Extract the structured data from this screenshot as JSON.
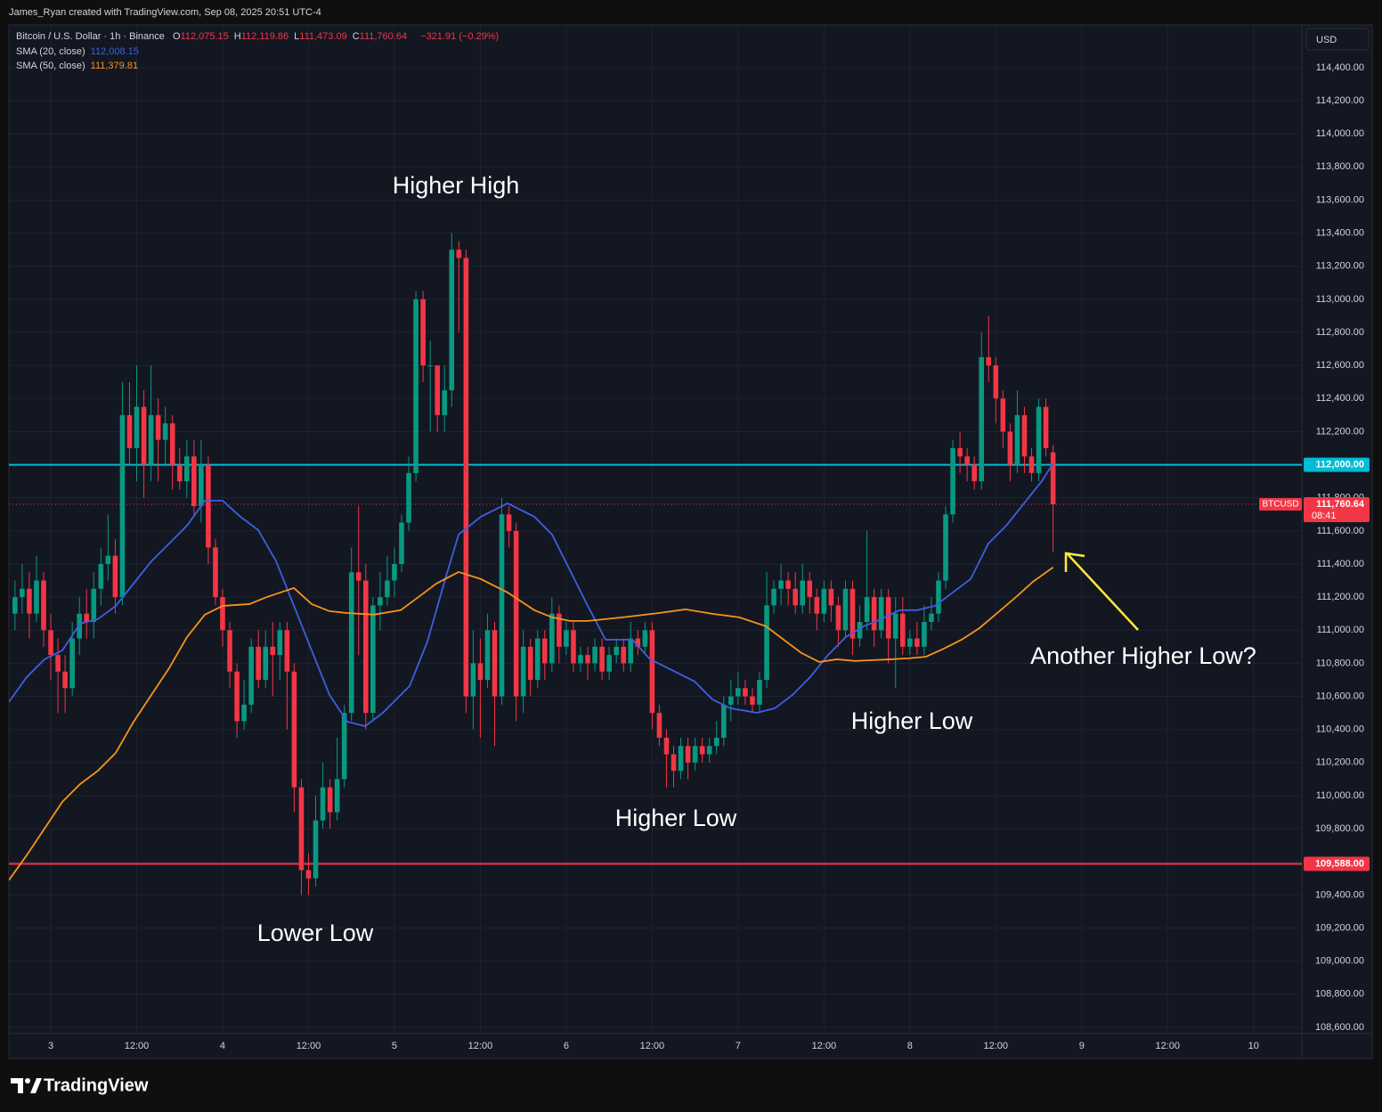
{
  "chart_data": {
    "type": "candlestick",
    "header": "James_Ryan created with TradingView.com, Sep 08, 2025 20:51 UTC-4",
    "symbol": "Bitcoin / U.S. Dollar · 1h · Binance",
    "ohlc": [
      {
        "key": "O",
        "value": "112,075.15"
      },
      {
        "key": "H",
        "value": "112,119.86"
      },
      {
        "key": "L",
        "value": "111,473.09"
      },
      {
        "key": "C",
        "value": "111,760.64"
      }
    ],
    "change": "−321.91 (−0.29%)",
    "currency": "USD",
    "footer": "TradingView",
    "up_color": "#089981",
    "down_color": "#f23645",
    "xlim": [
      -5.85,
      174.75
    ],
    "ylim": [
      108562,
      114658
    ],
    "xticks": [
      {
        "value": 0,
        "label": "3"
      },
      {
        "value": 12,
        "label": "12:00"
      },
      {
        "value": 24,
        "label": "4"
      },
      {
        "value": 36,
        "label": "12:00"
      },
      {
        "value": 48,
        "label": "5"
      },
      {
        "value": 60,
        "label": "12:00"
      },
      {
        "value": 72,
        "label": "6"
      },
      {
        "value": 84,
        "label": "12:00"
      },
      {
        "value": 96,
        "label": "7"
      },
      {
        "value": 108,
        "label": "12:00"
      },
      {
        "value": 120,
        "label": "8"
      },
      {
        "value": 132,
        "label": "12:00"
      },
      {
        "value": 144,
        "label": "9"
      },
      {
        "value": 156,
        "label": "12:00"
      },
      {
        "value": 168,
        "label": "10"
      }
    ],
    "yticks": [
      {
        "value": 108600,
        "label": "108,600.00"
      },
      {
        "value": 108800,
        "label": "108,800.00"
      },
      {
        "value": 109000,
        "label": "109,000.00"
      },
      {
        "value": 109200,
        "label": "109,200.00"
      },
      {
        "value": 109400,
        "label": "109,400.00"
      },
      {
        "value": 109600,
        "label": "109,600.00"
      },
      {
        "value": 109800,
        "label": "109,800.00"
      },
      {
        "value": 110000,
        "label": "110,000.00"
      },
      {
        "value": 110200,
        "label": "110,200.00"
      },
      {
        "value": 110400,
        "label": "110,400.00"
      },
      {
        "value": 110600,
        "label": "110,600.00"
      },
      {
        "value": 110800,
        "label": "110,800.00"
      },
      {
        "value": 111000,
        "label": "111,000.00"
      },
      {
        "value": 111200,
        "label": "111,200.00"
      },
      {
        "value": 111400,
        "label": "111,400.00"
      },
      {
        "value": 111600,
        "label": "111,600.00"
      },
      {
        "value": 111800,
        "label": "111,800.00"
      },
      {
        "value": 112000,
        "label": "112,000.00"
      },
      {
        "value": 112200,
        "label": "112,200.00"
      },
      {
        "value": 112400,
        "label": "112,400.00"
      },
      {
        "value": 112600,
        "label": "112,600.00"
      },
      {
        "value": 112800,
        "label": "112,800.00"
      },
      {
        "value": 113000,
        "label": "113,000.00"
      },
      {
        "value": 113200,
        "label": "113,200.00"
      },
      {
        "value": 113400,
        "label": "113,400.00"
      },
      {
        "value": 113600,
        "label": "113,600.00"
      },
      {
        "value": 113800,
        "label": "113,800.00"
      },
      {
        "value": 114000,
        "label": "114,000.00"
      },
      {
        "value": 114200,
        "label": "114,200.00"
      },
      {
        "value": 114400,
        "label": "114,400.00"
      }
    ],
    "grid": true,
    "x": [
      -5,
      -4,
      -3,
      -2,
      -1,
      0,
      1,
      2,
      3,
      4,
      5,
      6,
      7,
      8,
      9,
      10,
      11,
      12,
      13,
      14,
      15,
      16,
      17,
      18,
      19,
      20,
      21,
      22,
      23,
      24,
      25,
      26,
      27,
      28,
      29,
      30,
      31,
      32,
      33,
      34,
      35,
      36,
      37,
      38,
      39,
      40,
      41,
      42,
      43,
      44,
      45,
      46,
      47,
      48,
      49,
      50,
      51,
      52,
      53,
      54,
      55,
      56,
      57,
      58,
      59,
      60,
      61,
      62,
      63,
      64,
      65,
      66,
      67,
      68,
      69,
      70,
      71,
      72,
      73,
      74,
      75,
      76,
      77,
      78,
      79,
      80,
      81,
      82,
      83,
      84,
      85,
      86,
      87,
      88,
      89,
      90,
      91,
      92,
      93,
      94,
      95,
      96,
      97,
      98,
      99,
      100,
      101,
      102,
      103,
      104,
      105,
      106,
      107,
      108,
      109,
      110,
      111,
      112,
      113,
      114,
      115,
      116,
      117,
      118,
      119,
      120,
      121,
      122,
      123,
      124,
      125,
      126,
      127,
      128,
      129,
      130,
      131,
      132,
      133,
      134,
      135,
      136,
      137,
      138,
      139,
      140
    ],
    "open": [
      111100,
      111200,
      111250,
      111100,
      111300,
      111000,
      110850,
      110750,
      110650,
      110950,
      111100,
      111050,
      111250,
      111400,
      111450,
      111200,
      112300,
      112100,
      112350,
      112000,
      112300,
      112150,
      112250,
      112000,
      111900,
      112050,
      111750,
      112000,
      111500,
      111200,
      111000,
      110750,
      110450,
      110550,
      110900,
      110700,
      110900,
      110850,
      111000,
      110750,
      110050,
      109550,
      109500,
      109850,
      110050,
      109900,
      110100,
      110500,
      111350,
      111300,
      110500,
      111150,
      111200,
      111300,
      111400,
      111650,
      111950,
      113000,
      112600,
      112600,
      112300,
      112450,
      113300,
      113250,
      110600,
      110800,
      110700,
      111000,
      110600,
      111700,
      111600,
      110600,
      110900,
      110700,
      110950,
      110800,
      111100,
      110900,
      111000,
      110800,
      110850,
      110800,
      110900,
      110750,
      110850,
      110900,
      110800,
      110950,
      110900,
      111000,
      110500,
      110350,
      110250,
      110150,
      110300,
      110200,
      110300,
      110250,
      110300,
      110350,
      110550,
      110600,
      110650,
      110600,
      110550,
      110700,
      111150,
      111250,
      111300,
      111250,
      111150,
      111300,
      111200,
      111100,
      111250,
      111150,
      111000,
      111250,
      110950,
      111050,
      111200,
      111000,
      111200,
      110950,
      111100,
      110900,
      110950,
      110900,
      111050,
      111100,
      111300,
      111700,
      112100,
      112050,
      112000,
      111900,
      112650,
      112600,
      112400,
      112200,
      112000,
      112300,
      112050,
      111950,
      112350,
      112075.15
    ],
    "high": [
      111300,
      111400,
      111350,
      111450,
      111350,
      111100,
      110950,
      110850,
      111050,
      111200,
      111250,
      111350,
      111500,
      111700,
      111550,
      112500,
      112500,
      112600,
      112450,
      112600,
      112400,
      112350,
      112300,
      112100,
      112150,
      112150,
      112150,
      112050,
      111550,
      111250,
      111050,
      110800,
      110700,
      110950,
      111000,
      111000,
      111050,
      111050,
      111050,
      110800,
      110100,
      109650,
      110000,
      110200,
      110100,
      110350,
      110550,
      111500,
      111750,
      111400,
      111200,
      111350,
      111450,
      111500,
      111700,
      112050,
      113050,
      113050,
      112750,
      112600,
      112600,
      113400,
      113350,
      113300,
      111000,
      110950,
      111100,
      111050,
      111800,
      111750,
      111650,
      111000,
      110950,
      111000,
      111000,
      111200,
      111150,
      111050,
      111050,
      110900,
      110900,
      110950,
      110950,
      110900,
      110950,
      110950,
      111050,
      111000,
      111050,
      111050,
      110550,
      110400,
      110300,
      110350,
      110350,
      110350,
      110350,
      110350,
      110450,
      110600,
      110700,
      110750,
      110700,
      110650,
      110750,
      111350,
      111300,
      111400,
      111350,
      111350,
      111400,
      111350,
      111250,
      111300,
      111300,
      111200,
      111300,
      111300,
      111150,
      111600,
      111250,
      111250,
      111250,
      111200,
      111200,
      111000,
      111050,
      111150,
      111200,
      111350,
      111750,
      112150,
      112200,
      112100,
      112050,
      112800,
      112900,
      112650,
      112450,
      112250,
      112450,
      112350,
      112100,
      112400,
      112400,
      112119.86
    ],
    "low": [
      111000,
      111100,
      110950,
      111050,
      110900,
      110700,
      110500,
      110500,
      110600,
      110850,
      110950,
      110950,
      111150,
      111300,
      111100,
      111150,
      112000,
      111900,
      111800,
      111900,
      111900,
      112000,
      111850,
      111850,
      111800,
      111700,
      111650,
      111400,
      111150,
      110900,
      110650,
      110350,
      110400,
      110500,
      110650,
      110650,
      110600,
      110700,
      110400,
      109900,
      109400,
      109400,
      109450,
      109800,
      109800,
      109850,
      110050,
      110450,
      110850,
      110400,
      110450,
      111000,
      111150,
      111200,
      111350,
      111600,
      111900,
      112500,
      112200,
      112200,
      112200,
      112350,
      112800,
      110500,
      110400,
      110350,
      110650,
      110300,
      110550,
      111500,
      110450,
      110500,
      110600,
      110650,
      110700,
      110750,
      110800,
      110850,
      110750,
      110750,
      110700,
      110750,
      110700,
      110700,
      110800,
      110750,
      110750,
      110850,
      110850,
      110400,
      110300,
      110050,
      110050,
      110100,
      110100,
      110150,
      110200,
      110200,
      110250,
      110300,
      110450,
      110550,
      110550,
      110500,
      110500,
      110650,
      111100,
      111150,
      111150,
      111100,
      111100,
      111100,
      111000,
      111050,
      111050,
      110900,
      110950,
      110850,
      110900,
      111000,
      110900,
      110950,
      110800,
      110650,
      110850,
      110850,
      110850,
      110850,
      111000,
      111050,
      111250,
      111650,
      111950,
      111900,
      111850,
      111850,
      112500,
      112250,
      112100,
      111900,
      111950,
      111950,
      111900,
      111900,
      112050,
      111473.09
    ],
    "close": [
      111200,
      111250,
      111100,
      111300,
      111000,
      110850,
      110750,
      110650,
      110950,
      111100,
      111050,
      111250,
      111400,
      111450,
      111200,
      112300,
      112100,
      112350,
      112000,
      112300,
      112150,
      112250,
      112000,
      111900,
      112050,
      111750,
      112000,
      111500,
      111200,
      111000,
      110750,
      110450,
      110550,
      110900,
      110700,
      110900,
      110850,
      111000,
      110750,
      110050,
      109550,
      109500,
      109850,
      110050,
      109900,
      110100,
      110500,
      111350,
      111300,
      110500,
      111150,
      111200,
      111300,
      111400,
      111650,
      111950,
      113000,
      112600,
      112600,
      112300,
      112450,
      113300,
      113250,
      110600,
      110800,
      110700,
      111000,
      110600,
      111700,
      111600,
      110600,
      110900,
      110700,
      110950,
      110800,
      111100,
      110900,
      111000,
      110800,
      110850,
      110800,
      110900,
      110750,
      110850,
      110900,
      110800,
      110950,
      110900,
      111000,
      110500,
      110350,
      110250,
      110150,
      110300,
      110200,
      110300,
      110250,
      110300,
      110350,
      110550,
      110600,
      110650,
      110600,
      110550,
      110700,
      111150,
      111250,
      111300,
      111250,
      111150,
      111300,
      111200,
      111100,
      111250,
      111150,
      111000,
      111250,
      110950,
      111050,
      111200,
      111000,
      111200,
      110950,
      111100,
      110900,
      110950,
      110900,
      111050,
      111100,
      111300,
      111700,
      112100,
      112050,
      112000,
      111900,
      112650,
      112600,
      112400,
      112200,
      112000,
      112300,
      112050,
      111950,
      112350,
      112100,
      111760.64
    ],
    "series": [
      {
        "name": "SMA (20, close)",
        "color": "#3f5fe0",
        "value_label": "112,008.15",
        "x": [
          -5.85,
          -3.36,
          -0.87,
          1.62,
          4.1,
          6.59,
          9.08,
          11.57,
          14.05,
          16.54,
          19.03,
          21.52,
          24,
          26.49,
          28.98,
          31.47,
          33.96,
          36.44,
          38.93,
          41.42,
          43.91,
          46.39,
          50.12,
          52.61,
          55.1,
          56.97,
          60.07,
          63.81,
          67.54,
          70.02,
          72.51,
          75,
          77.49,
          81.22,
          83.71,
          87.44,
          89.93,
          92.41,
          94.9,
          98.63,
          101.12,
          103.61,
          106.09,
          108.58,
          111.07,
          113.56,
          116.04,
          118.53,
          121.02,
          123.51,
          125.99,
          128.48,
          130.97,
          133.46,
          135.95,
          138.43,
          140
        ],
        "values": [
          110566,
          110717,
          110824,
          110878,
          111040,
          111067,
          111147,
          111282,
          111417,
          111524,
          111632,
          111783,
          111783,
          111686,
          111605,
          111417,
          111147,
          110878,
          110609,
          110447,
          110420,
          110501,
          110663,
          110932,
          111309,
          111578,
          111686,
          111767,
          111686,
          111578,
          111363,
          111147,
          110943,
          110943,
          110824,
          110744,
          110690,
          110582,
          110528,
          110501,
          110528,
          110609,
          110717,
          110851,
          110959,
          111024,
          111067,
          111121,
          111121,
          111147,
          111228,
          111309,
          111524,
          111632,
          111767,
          111901,
          112008.15
        ]
      },
      {
        "name": "SMA (50, close)",
        "color": "#f7931a",
        "value_label": "111,379.81",
        "x": [
          -5.85,
          -3.36,
          -0.87,
          1.62,
          4.1,
          6.59,
          9.08,
          11.57,
          14.05,
          16.54,
          19.03,
          21.52,
          24,
          27.74,
          30.22,
          33.96,
          36.44,
          38.93,
          41.42,
          45.15,
          48.88,
          51.37,
          53.86,
          56.97,
          60.07,
          63.81,
          67.54,
          70.02,
          72.51,
          75,
          79.98,
          84.95,
          88.68,
          92.41,
          96.14,
          99.88,
          102.36,
          104.85,
          107.34,
          109.83,
          112.31,
          114.8,
          117.29,
          119.78,
          122.26,
          124.75,
          127.24,
          129.73,
          132.21,
          134.7,
          137.19,
          140
        ],
        "values": [
          109489,
          109640,
          109801,
          109963,
          110070,
          110151,
          110259,
          110447,
          110609,
          110771,
          110959,
          111094,
          111147,
          111158,
          111201,
          111255,
          111158,
          111115,
          111104,
          111094,
          111121,
          111201,
          111282,
          111352,
          111309,
          111228,
          111121,
          111078,
          111056,
          111056,
          111078,
          111104,
          111126,
          111099,
          111078,
          111024,
          110943,
          110862,
          110808,
          110824,
          110814,
          110819,
          110824,
          110830,
          110840,
          110889,
          110943,
          111013,
          111104,
          111196,
          111293,
          111379.81
        ]
      }
    ],
    "levels": [
      {
        "value": 112000,
        "label": "112,000.00",
        "color": "#00bcd4"
      },
      {
        "value": 109588,
        "label": "109,588.00",
        "color": "#f23645"
      }
    ],
    "last_price": {
      "value": 111760.64,
      "label": "111,760.64",
      "symbol": "BTCUSD",
      "countdown": "08:41"
    },
    "annotations": [
      "Higher High",
      "Lower Low",
      "Higher Low",
      "Higher Low",
      "Another Higher Low?"
    ]
  }
}
